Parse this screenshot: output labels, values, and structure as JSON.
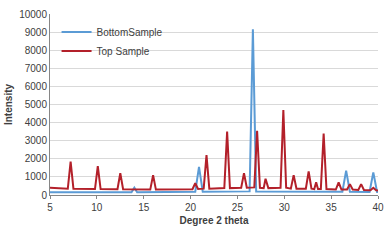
{
  "chart_data": {
    "type": "line",
    "x_label": "Degree 2 theta",
    "y_label": "Intensity",
    "series": [
      {
        "name": "BottomSample",
        "color": "#5b9bd5",
        "x": [
          5,
          13.7,
          14.0,
          14.3,
          20.5,
          20.9,
          21.3,
          26.3,
          26.65,
          27.0,
          36.2,
          36.6,
          37.0,
          39.1,
          39.5,
          39.9,
          40
        ],
        "values": [
          150,
          150,
          400,
          150,
          180,
          1550,
          180,
          200,
          9150,
          200,
          180,
          1350,
          180,
          170,
          1250,
          170,
          170
        ]
      },
      {
        "name": "Top Sample",
        "color": "#b3202a",
        "x": [
          5,
          6.9,
          7.2,
          7.5,
          9.8,
          10.1,
          10.4,
          12.2,
          12.5,
          12.8,
          15.7,
          16.0,
          16.3,
          20.2,
          20.5,
          20.8,
          21.4,
          21.7,
          22.0,
          23.6,
          23.9,
          24.2,
          25.4,
          25.7,
          26.0,
          26.8,
          27.1,
          27.4,
          27.8,
          28.0,
          28.3,
          29.6,
          29.9,
          30.2,
          30.7,
          31.0,
          31.3,
          32.3,
          32.6,
          32.9,
          33.2,
          33.4,
          33.6,
          33.9,
          34.2,
          34.5,
          35.5,
          35.8,
          36.1,
          36.7,
          37.0,
          37.3,
          37.9,
          38.2,
          38.5,
          39.2,
          39.5,
          39.8,
          40
        ],
        "values": [
          400,
          350,
          1850,
          350,
          330,
          1600,
          330,
          320,
          1200,
          320,
          300,
          1100,
          300,
          320,
          650,
          330,
          350,
          2200,
          350,
          380,
          3500,
          380,
          400,
          1200,
          400,
          420,
          3550,
          400,
          380,
          900,
          380,
          400,
          4700,
          400,
          350,
          1100,
          350,
          350,
          1300,
          350,
          330,
          700,
          330,
          330,
          3400,
          330,
          300,
          700,
          300,
          300,
          600,
          300,
          280,
          600,
          280,
          260,
          400,
          260,
          250
        ]
      }
    ],
    "xlim": [
      5,
      40
    ],
    "xticks": [
      5,
      10,
      15,
      20,
      25,
      30,
      35,
      40
    ],
    "ylim": [
      0,
      10000
    ],
    "yticks": [
      0,
      1000,
      2000,
      3000,
      4000,
      5000,
      6000,
      7000,
      8000,
      9000,
      10000
    ],
    "grid": true,
    "legend": "upper left"
  }
}
